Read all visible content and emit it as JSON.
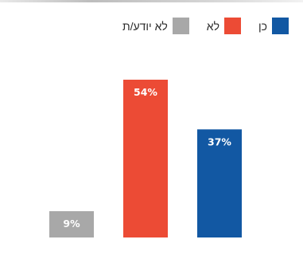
{
  "chart_data": {
    "type": "bar",
    "categories": [
      "לא יודע/ת",
      "לא",
      "כן"
    ],
    "values": [
      9,
      54,
      37
    ],
    "value_labels": [
      "9%",
      "54%",
      "37%"
    ],
    "colors": [
      "#a8a8a8",
      "#ec4b35",
      "#1258a3"
    ],
    "ylim": [
      0,
      60
    ],
    "grid": false,
    "legend_position": "top-right",
    "legend": [
      {
        "label": "כן",
        "color": "#1258a3"
      },
      {
        "label": "לא",
        "color": "#ec4b35"
      },
      {
        "label": "לא יודע/ת",
        "color": "#a8a8a8"
      }
    ]
  }
}
